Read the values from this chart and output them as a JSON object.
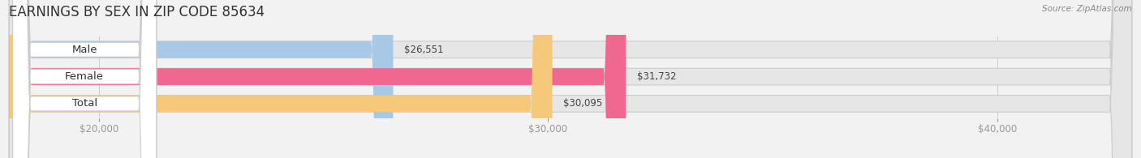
{
  "title": "EARNINGS BY SEX IN ZIP CODE 85634",
  "source": "Source: ZipAtlas.com",
  "categories": [
    "Male",
    "Female",
    "Total"
  ],
  "values": [
    26551,
    31732,
    30095
  ],
  "bar_colors": [
    "#a8c8e8",
    "#f06890",
    "#f5c87a"
  ],
  "value_labels": [
    "$26,551",
    "$31,732",
    "$30,095"
  ],
  "xmin": 18000,
  "xmax": 43000,
  "xticks": [
    20000,
    30000,
    40000
  ],
  "xticklabels": [
    "$20,000",
    "$30,000",
    "$40,000"
  ],
  "background_color": "#f2f2f2",
  "bar_bg_color": "#e6e6e6",
  "bar_height": 0.62,
  "bar_gap": 0.38,
  "title_fontsize": 12,
  "tick_fontsize": 8.5,
  "label_fontsize": 9.5,
  "value_fontsize": 8.5
}
